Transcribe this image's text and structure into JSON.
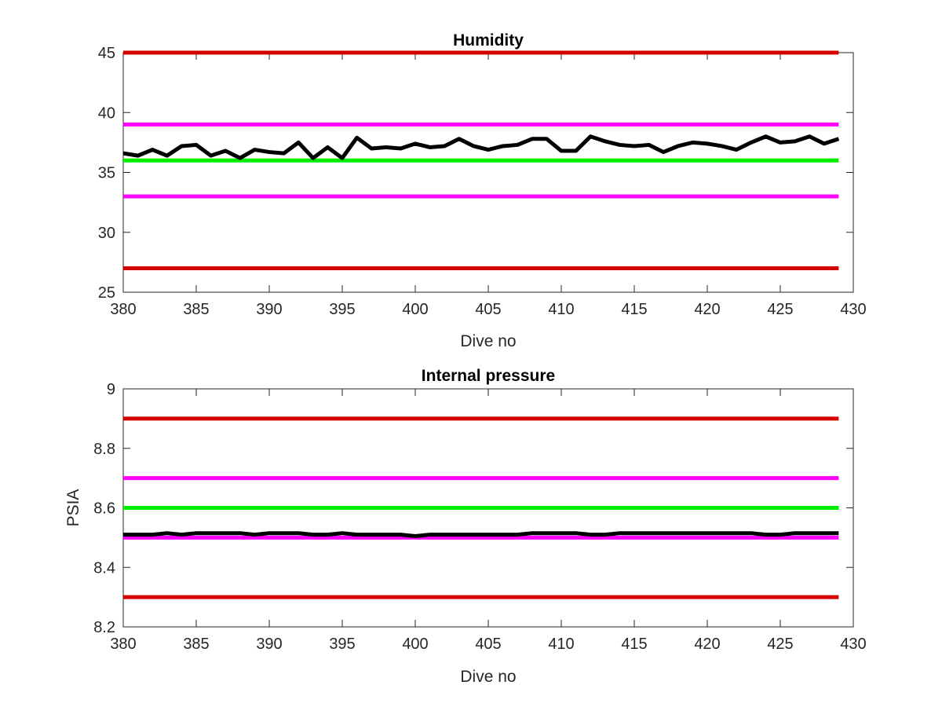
{
  "chart_data": [
    {
      "type": "line",
      "title": "Humidity",
      "xlabel": "Dive no",
      "ylabel": "",
      "xlim": [
        380,
        430
      ],
      "ylim": [
        25,
        45
      ],
      "xticks": [
        380,
        385,
        390,
        395,
        400,
        405,
        410,
        415,
        420,
        425,
        430
      ],
      "yticks": [
        25,
        30,
        35,
        40,
        45
      ],
      "grid": false,
      "reference_lines": [
        {
          "y": 45,
          "color": "#d40000"
        },
        {
          "y": 39,
          "color": "#ff00ff"
        },
        {
          "y": 36,
          "color": "#00ee00"
        },
        {
          "y": 33,
          "color": "#ff00ff"
        },
        {
          "y": 27,
          "color": "#d40000"
        }
      ],
      "series": [
        {
          "color": "#000000",
          "x": [
            380,
            381,
            382,
            383,
            384,
            385,
            386,
            387,
            388,
            389,
            390,
            391,
            392,
            393,
            394,
            395,
            396,
            397,
            398,
            399,
            400,
            401,
            402,
            403,
            404,
            405,
            406,
            407,
            408,
            409,
            410,
            411,
            412,
            413,
            414,
            415,
            416,
            417,
            418,
            419,
            420,
            421,
            422,
            423,
            424,
            425,
            426,
            427,
            428,
            429
          ],
          "y": [
            36.6,
            36.4,
            36.9,
            36.4,
            37.2,
            37.3,
            36.4,
            36.8,
            36.2,
            36.9,
            36.7,
            36.6,
            37.5,
            36.2,
            37.1,
            36.2,
            37.9,
            37.0,
            37.1,
            37.0,
            37.4,
            37.1,
            37.2,
            37.8,
            37.2,
            36.9,
            37.2,
            37.3,
            37.8,
            37.8,
            36.8,
            36.8,
            38.0,
            37.6,
            37.3,
            37.2,
            37.3,
            36.7,
            37.2,
            37.5,
            37.4,
            37.2,
            36.9,
            37.5,
            38.0,
            37.5,
            37.6,
            38.0,
            37.4,
            37.8
          ]
        }
      ]
    },
    {
      "type": "line",
      "title": "Internal pressure",
      "xlabel": "Dive no",
      "ylabel": "PSIA",
      "xlim": [
        380,
        430
      ],
      "ylim": [
        8.2,
        9
      ],
      "xticks": [
        380,
        385,
        390,
        395,
        400,
        405,
        410,
        415,
        420,
        425,
        430
      ],
      "yticks": [
        8.2,
        8.4,
        8.6,
        8.8,
        9
      ],
      "grid": false,
      "reference_lines": [
        {
          "y": 8.9,
          "color": "#d40000"
        },
        {
          "y": 8.7,
          "color": "#ff00ff"
        },
        {
          "y": 8.6,
          "color": "#00ee00"
        },
        {
          "y": 8.5,
          "color": "#ff00ff"
        },
        {
          "y": 8.3,
          "color": "#d40000"
        }
      ],
      "series": [
        {
          "color": "#000000",
          "x": [
            380,
            381,
            382,
            383,
            384,
            385,
            386,
            387,
            388,
            389,
            390,
            391,
            392,
            393,
            394,
            395,
            396,
            397,
            398,
            399,
            400,
            401,
            402,
            403,
            404,
            405,
            406,
            407,
            408,
            409,
            410,
            411,
            412,
            413,
            414,
            415,
            416,
            417,
            418,
            419,
            420,
            421,
            422,
            423,
            424,
            425,
            426,
            427,
            428,
            429
          ],
          "y": [
            8.51,
            8.51,
            8.51,
            8.515,
            8.51,
            8.515,
            8.515,
            8.515,
            8.515,
            8.51,
            8.515,
            8.515,
            8.515,
            8.51,
            8.51,
            8.515,
            8.51,
            8.51,
            8.51,
            8.51,
            8.505,
            8.51,
            8.51,
            8.51,
            8.51,
            8.51,
            8.51,
            8.51,
            8.515,
            8.515,
            8.515,
            8.515,
            8.51,
            8.51,
            8.515,
            8.515,
            8.515,
            8.515,
            8.515,
            8.515,
            8.515,
            8.515,
            8.515,
            8.515,
            8.51,
            8.51,
            8.515,
            8.515,
            8.515,
            8.515
          ]
        }
      ]
    }
  ]
}
